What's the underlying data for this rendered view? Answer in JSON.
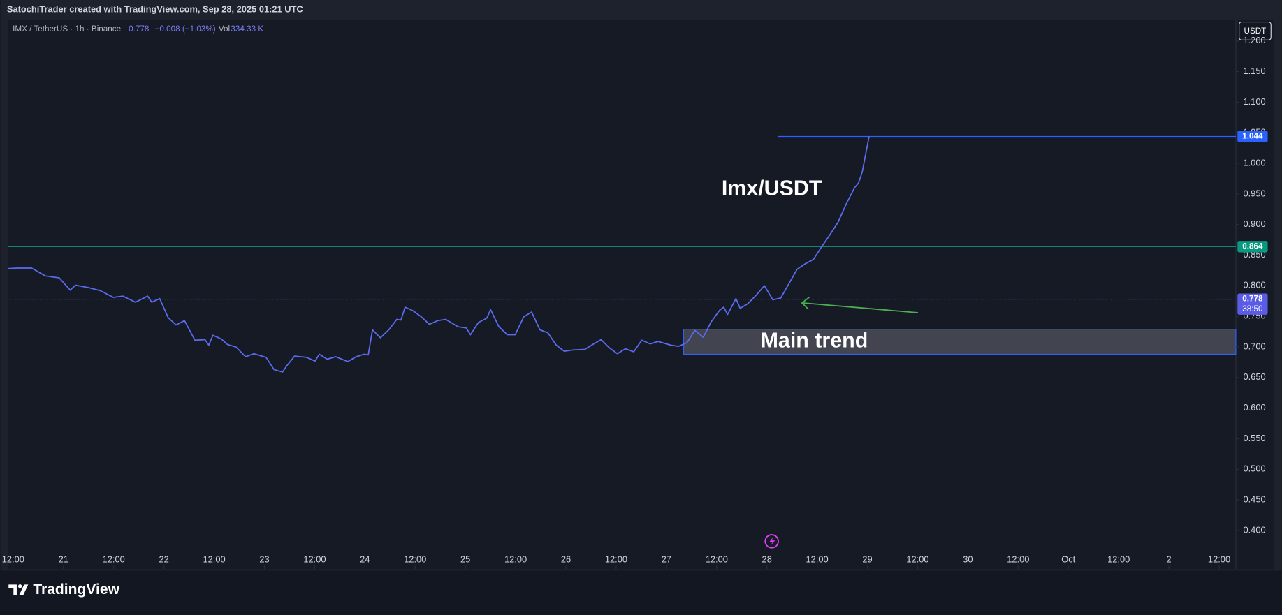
{
  "header": "SatochiTrader created with TradingView.com, Sep 28, 2025 01:21 UTC",
  "footer": "TradingView",
  "chart_data": {
    "type": "line",
    "symbol": "IMX / TetherUS · 1h · Binance",
    "last": 0.778,
    "change": "−0.008 (−1.03%)",
    "volume_label": "Vol",
    "volume": "334.33 K",
    "currency": "USDT",
    "color": "#5b6cf0",
    "x": [
      -13.3,
      -11.1,
      -7.6,
      -4.3,
      -1.0,
      1.6,
      2.9,
      6.0,
      8.8,
      11.9,
      14.2,
      17.2,
      20.1,
      21.1,
      23.0,
      25.0,
      26.9,
      28.9,
      31.4,
      33.8,
      34.7,
      35.7,
      37.7,
      39.2,
      41.2,
      43.5,
      45.5,
      48.4,
      50.3,
      52.3,
      53.3,
      55.2,
      58.1,
      60.1,
      61.1,
      63.0,
      65.0,
      67.9,
      69.9,
      71.8,
      72.8,
      73.8,
      75.7,
      77.7,
      79.6,
      80.6,
      81.6,
      83.5,
      85.5,
      87.4,
      89.4,
      91.3,
      94.2,
      96.2,
      97.2,
      99.1,
      101.1,
      102.0,
      104.0,
      106.0,
      107.9,
      109.9,
      111.8,
      113.8,
      115.7,
      117.7,
      119.6,
      121.6,
      124.5,
      126.4,
      128.4,
      130.3,
      132.3,
      134.2,
      136.2,
      138.1,
      140.1,
      142.0,
      145.0,
      146.9,
      148.9,
      150.8,
      152.8,
      154.7,
      156.7,
      157.7,
      158.6,
      160.6,
      161.6,
      163.5,
      165.5,
      167.4,
      169.4,
      171.3,
      173.3,
      175.2,
      177.2,
      179.1,
      181.1,
      183.0,
      185.0,
      186.9,
      188.9,
      189.9,
      190.8,
      191.8,
      192.4
    ],
    "values": [
      0.828,
      0.829,
      0.829,
      0.816,
      0.813,
      0.793,
      0.801,
      0.797,
      0.792,
      0.781,
      0.783,
      0.773,
      0.783,
      0.773,
      0.779,
      0.748,
      0.736,
      0.743,
      0.711,
      0.712,
      0.703,
      0.719,
      0.713,
      0.704,
      0.7,
      0.684,
      0.689,
      0.683,
      0.663,
      0.659,
      0.669,
      0.685,
      0.683,
      0.677,
      0.688,
      0.68,
      0.684,
      0.676,
      0.684,
      0.688,
      0.687,
      0.728,
      0.715,
      0.728,
      0.745,
      0.744,
      0.765,
      0.759,
      0.749,
      0.737,
      0.743,
      0.745,
      0.733,
      0.731,
      0.72,
      0.74,
      0.747,
      0.761,
      0.733,
      0.72,
      0.72,
      0.749,
      0.757,
      0.728,
      0.723,
      0.703,
      0.693,
      0.695,
      0.696,
      0.704,
      0.712,
      0.699,
      0.689,
      0.697,
      0.692,
      0.711,
      0.705,
      0.709,
      0.703,
      0.701,
      0.707,
      0.727,
      0.716,
      0.741,
      0.76,
      0.765,
      0.753,
      0.779,
      0.763,
      0.771,
      0.785,
      0.8,
      0.777,
      0.78,
      0.804,
      0.827,
      0.836,
      0.843,
      0.864,
      0.883,
      0.904,
      0.933,
      0.96,
      0.968,
      0.987,
      1.023,
      1.044
    ],
    "xlim": [
      -13.3,
      279.6
    ],
    "xticks": [
      {
        "value": -12,
        "label": "12:00"
      },
      {
        "value": 0,
        "label": "21"
      },
      {
        "value": 12,
        "label": "12:00"
      },
      {
        "value": 24,
        "label": "22"
      },
      {
        "value": 36,
        "label": "12:00"
      },
      {
        "value": 48,
        "label": "23"
      },
      {
        "value": 60,
        "label": "12:00"
      },
      {
        "value": 72,
        "label": "24"
      },
      {
        "value": 84,
        "label": "12:00"
      },
      {
        "value": 96,
        "label": "25"
      },
      {
        "value": 108,
        "label": "12:00"
      },
      {
        "value": 120,
        "label": "26"
      },
      {
        "value": 132,
        "label": "12:00"
      },
      {
        "value": 144,
        "label": "27"
      },
      {
        "value": 156,
        "label": "12:00"
      },
      {
        "value": 168,
        "label": "28"
      },
      {
        "value": 180,
        "label": "12:00"
      },
      {
        "value": 192,
        "label": "29"
      },
      {
        "value": 204,
        "label": "12:00"
      },
      {
        "value": 216,
        "label": "30"
      },
      {
        "value": 228,
        "label": "12:00"
      },
      {
        "value": 240,
        "label": "Oct"
      },
      {
        "value": 252,
        "label": "12:00"
      },
      {
        "value": 264,
        "label": "2"
      },
      {
        "value": 276,
        "label": "12:00"
      }
    ],
    "ylim": [
      0.337,
      1.235
    ],
    "yticks": [
      {
        "value": 0.4,
        "label": "0.400"
      },
      {
        "value": 0.45,
        "label": "0.450"
      },
      {
        "value": 0.5,
        "label": "0.500"
      },
      {
        "value": 0.55,
        "label": "0.550"
      },
      {
        "value": 0.6,
        "label": "0.600"
      },
      {
        "value": 0.65,
        "label": "0.650"
      },
      {
        "value": 0.7,
        "label": "0.700"
      },
      {
        "value": 0.75,
        "label": "0.750"
      },
      {
        "value": 0.8,
        "label": "0.800"
      },
      {
        "value": 0.85,
        "label": "0.850"
      },
      {
        "value": 0.9,
        "label": "0.900"
      },
      {
        "value": 0.95,
        "label": "0.950"
      },
      {
        "value": 1.0,
        "label": "1.000"
      },
      {
        "value": 1.05,
        "label": "1.050"
      },
      {
        "value": 1.1,
        "label": "1.100"
      },
      {
        "value": 1.15,
        "label": "1.150"
      },
      {
        "value": 1.2,
        "label": "1.200"
      }
    ],
    "levels": [
      {
        "value": 1.044,
        "color": "#2962ff",
        "x_start": 170.6,
        "style": "solid"
      },
      {
        "value": 0.864,
        "color": "#089981",
        "x_start": -13.3,
        "style": "solid"
      },
      {
        "value": 0.778,
        "color": "#5b5ce6",
        "x_start": -13.3,
        "style": "dotted"
      }
    ],
    "countdown": "38:50",
    "zone": {
      "label": "Main trend",
      "ylim": [
        0.688,
        0.729
      ],
      "x_start": 148.1
    },
    "annotation": "Imx/USDT"
  }
}
